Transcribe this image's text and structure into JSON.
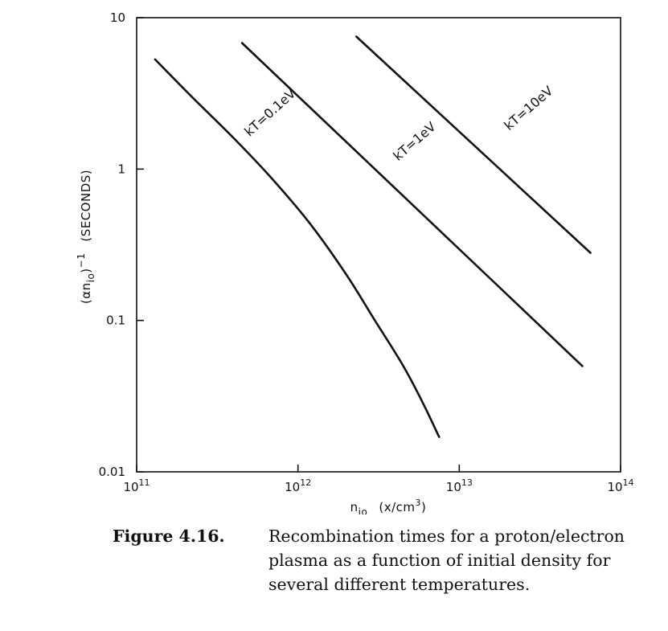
{
  "chart_data": {
    "type": "line",
    "title": "",
    "xlabel": {
      "base": "n",
      "sub": "io",
      "units": "(x/cm",
      "units_sup": "3",
      "units_close": ")"
    },
    "ylabel": {
      "open": "(αn",
      "sub": "io",
      "close": ")",
      "sup": "−1",
      "units": "(SECONDS)"
    },
    "xscale": "log",
    "yscale": "log",
    "xlim": [
      100000000000.0,
      100000000000000.0
    ],
    "ylim": [
      0.01,
      10
    ],
    "x_ticks": [
      {
        "value": 100000000000.0,
        "base": "10",
        "exp": "11"
      },
      {
        "value": 1000000000000.0,
        "base": "10",
        "exp": "12"
      },
      {
        "value": 10000000000000.0,
        "base": "10",
        "exp": "13"
      },
      {
        "value": 100000000000000.0,
        "base": "10",
        "exp": "14"
      }
    ],
    "y_ticks": [
      {
        "value": 0.01,
        "label": "0.01"
      },
      {
        "value": 0.1,
        "label": "0.1"
      },
      {
        "value": 1,
        "label": "1"
      },
      {
        "value": 10,
        "label": "10"
      }
    ],
    "grid": false,
    "series": [
      {
        "name": "kT = 0.1 eV",
        "label": "kT=0.1eV",
        "x": [
          130000000000.0,
          220000000000.0,
          400000000000.0,
          700000000000.0,
          1200000000000.0,
          2000000000000.0,
          3000000000000.0,
          4500000000000.0,
          6000000000000.0,
          7500000000000.0
        ],
        "y": [
          5.3,
          3.0,
          1.6,
          0.85,
          0.43,
          0.2,
          0.1,
          0.05,
          0.028,
          0.017
        ],
        "label_x": 700000000000.0,
        "label_y": 2.25,
        "label_angle": -42
      },
      {
        "name": "kT = 1 eV",
        "label": "kT=1eV",
        "x": [
          450000000000.0,
          58000000000000.0
        ],
        "y": [
          6.8,
          0.05
        ],
        "label_x": 5500000000000.0,
        "label_y": 1.45,
        "label_angle": -41
      },
      {
        "name": "kT = 10 eV",
        "label": "kT=10eV",
        "x": [
          2300000000000.0,
          65000000000000.0
        ],
        "y": [
          7.5,
          0.28
        ],
        "label_x": 28000000000000.0,
        "label_y": 2.4,
        "label_angle": -41
      }
    ]
  },
  "caption": {
    "label": "Figure 4.16.",
    "text": "Recombination times for a proton/electron plasma as a function of initial density for several different temperatures."
  }
}
